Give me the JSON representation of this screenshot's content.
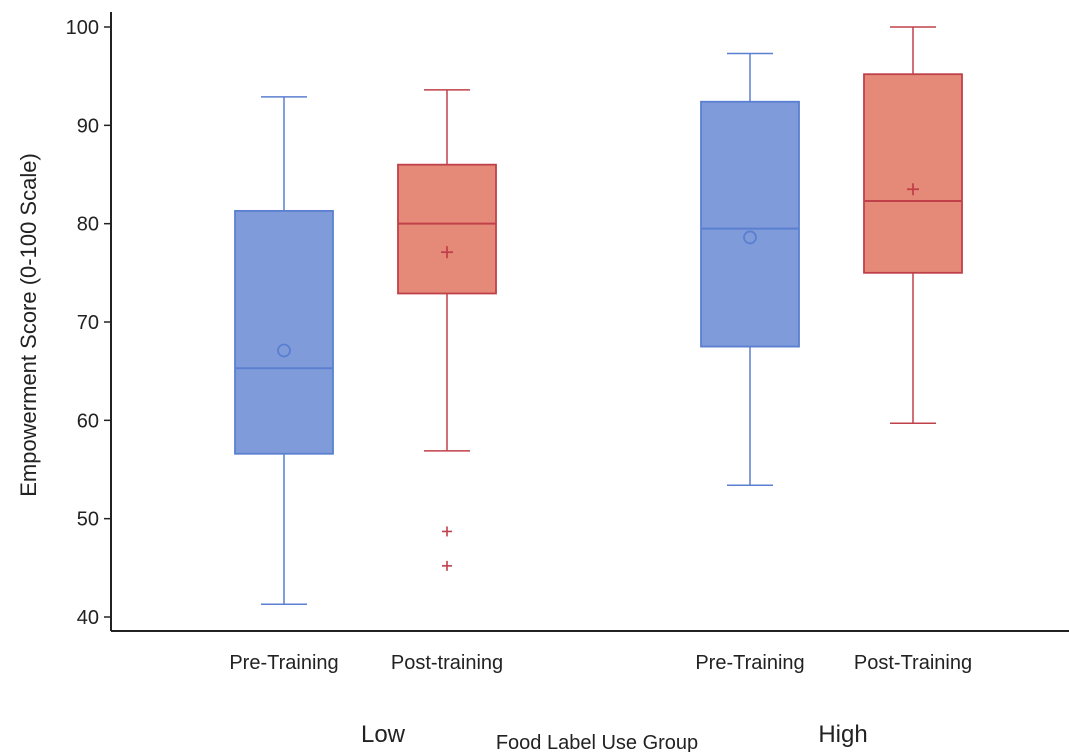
{
  "chart_data": {
    "type": "box",
    "ylabel": "Empowerment Score (0-100 Scale)",
    "xlabel": "Food Label Use Group",
    "ylim": [
      40,
      100
    ],
    "yticks": [
      40,
      50,
      60,
      70,
      80,
      90,
      100
    ],
    "grid": false,
    "groups": [
      "Low",
      "High"
    ],
    "boxes": [
      {
        "label": "Pre-Training",
        "group": "Low",
        "color": "#5b7fd1",
        "fill": "#7f9bd9",
        "whisker_low": 41.3,
        "q1": 56.6,
        "median": 65.3,
        "q3": 81.3,
        "whisker_high": 92.9,
        "mean": 67.1,
        "mean_marker": "circle",
        "outliers": []
      },
      {
        "label": "Post-training",
        "group": "Low",
        "color": "#c0404a",
        "fill": "#e58a78",
        "whisker_low": 56.9,
        "q1": 72.9,
        "median": 80.0,
        "q3": 86.0,
        "whisker_high": 93.6,
        "mean": 77.1,
        "mean_marker": "plus",
        "outliers": [
          48.7,
          45.2
        ]
      },
      {
        "label": "Pre-Training",
        "group": "High",
        "color": "#5b7fd1",
        "fill": "#7f9bd9",
        "whisker_low": 53.4,
        "q1": 67.5,
        "median": 79.5,
        "q3": 92.4,
        "whisker_high": 97.3,
        "mean": 78.6,
        "mean_marker": "circle",
        "outliers": []
      },
      {
        "label": "Post-Training",
        "group": "High",
        "color": "#c0404a",
        "fill": "#e58a78",
        "whisker_low": 59.7,
        "q1": 75.0,
        "median": 82.3,
        "q3": 95.2,
        "whisker_high": 100.0,
        "mean": 83.5,
        "mean_marker": "plus",
        "outliers": []
      }
    ]
  }
}
